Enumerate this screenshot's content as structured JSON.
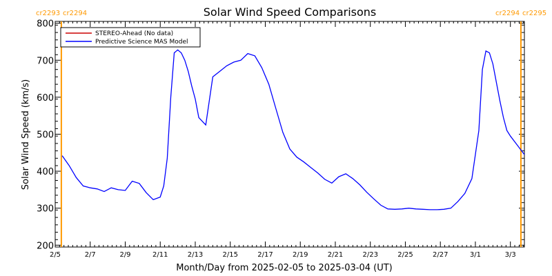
{
  "chart_data": {
    "type": "line",
    "title": "Solar Wind Speed Comparisons",
    "xlabel": "Month/Day from 2025-02-05 to 2025-03-04 (UT)",
    "ylabel": "Solar Wind Speed (km/s)",
    "ylim": [
      195,
      805
    ],
    "xlim_days": [
      0,
      26.8
    ],
    "x_ticks": [
      {
        "label": "2/5",
        "day": 0
      },
      {
        "label": "2/7",
        "day": 2
      },
      {
        "label": "2/9",
        "day": 4
      },
      {
        "label": "2/11",
        "day": 6
      },
      {
        "label": "2/13",
        "day": 8
      },
      {
        "label": "2/15",
        "day": 10
      },
      {
        "label": "2/17",
        "day": 12
      },
      {
        "label": "2/19",
        "day": 14
      },
      {
        "label": "2/21",
        "day": 16
      },
      {
        "label": "2/23",
        "day": 18
      },
      {
        "label": "2/25",
        "day": 20
      },
      {
        "label": "2/27",
        "day": 22
      },
      {
        "label": "3/1",
        "day": 24
      },
      {
        "label": "3/3",
        "day": 26
      }
    ],
    "y_ticks": [
      200,
      300,
      400,
      500,
      600,
      700,
      800
    ],
    "grid": false,
    "legend_position": "top-left",
    "carrington_markers": [
      {
        "labels": [
          "cr2293",
          "cr2294"
        ],
        "day": 0.35,
        "color": "#ff9900"
      },
      {
        "labels": [
          "cr2294",
          "cr2295"
        ],
        "day": 26.6,
        "color": "#ff9900"
      }
    ],
    "series": [
      {
        "name": "STEREO-Ahead (No data)",
        "color": "#cc0000",
        "x_days": [],
        "values": []
      },
      {
        "name": "Predictive Science MAS Model",
        "color": "#0000ff",
        "x_days": [
          0.4,
          0.8,
          1.2,
          1.6,
          2.0,
          2.4,
          2.8,
          3.2,
          3.6,
          4.0,
          4.4,
          4.8,
          5.2,
          5.6,
          6.0,
          6.2,
          6.4,
          6.6,
          6.8,
          7.0,
          7.2,
          7.4,
          7.6,
          7.8,
          8.0,
          8.2,
          8.6,
          9.0,
          9.4,
          9.8,
          10.2,
          10.6,
          11.0,
          11.4,
          11.8,
          12.2,
          12.6,
          13.0,
          13.4,
          13.8,
          14.2,
          14.6,
          15.0,
          15.4,
          15.8,
          16.2,
          16.6,
          17.0,
          17.4,
          17.8,
          18.2,
          18.6,
          19.0,
          19.4,
          19.8,
          20.2,
          20.6,
          21.0,
          21.4,
          21.8,
          22.2,
          22.6,
          23.0,
          23.4,
          23.8,
          24.2,
          24.4,
          24.6,
          24.8,
          25.0,
          25.2,
          25.4,
          25.6,
          25.8,
          26.0,
          26.4,
          26.8
        ],
        "values": [
          442,
          415,
          383,
          360,
          355,
          352,
          345,
          355,
          350,
          348,
          373,
          367,
          342,
          323,
          330,
          360,
          435,
          600,
          720,
          728,
          720,
          700,
          670,
          630,
          595,
          545,
          525,
          655,
          670,
          685,
          695,
          700,
          718,
          712,
          680,
          635,
          570,
          505,
          460,
          438,
          425,
          410,
          395,
          378,
          368,
          385,
          393,
          380,
          363,
          343,
          325,
          308,
          298,
          297,
          298,
          300,
          298,
          297,
          296,
          296,
          297,
          300,
          318,
          340,
          380,
          510,
          675,
          725,
          720,
          690,
          640,
          590,
          545,
          510,
          495,
          470,
          445
        ]
      }
    ]
  }
}
